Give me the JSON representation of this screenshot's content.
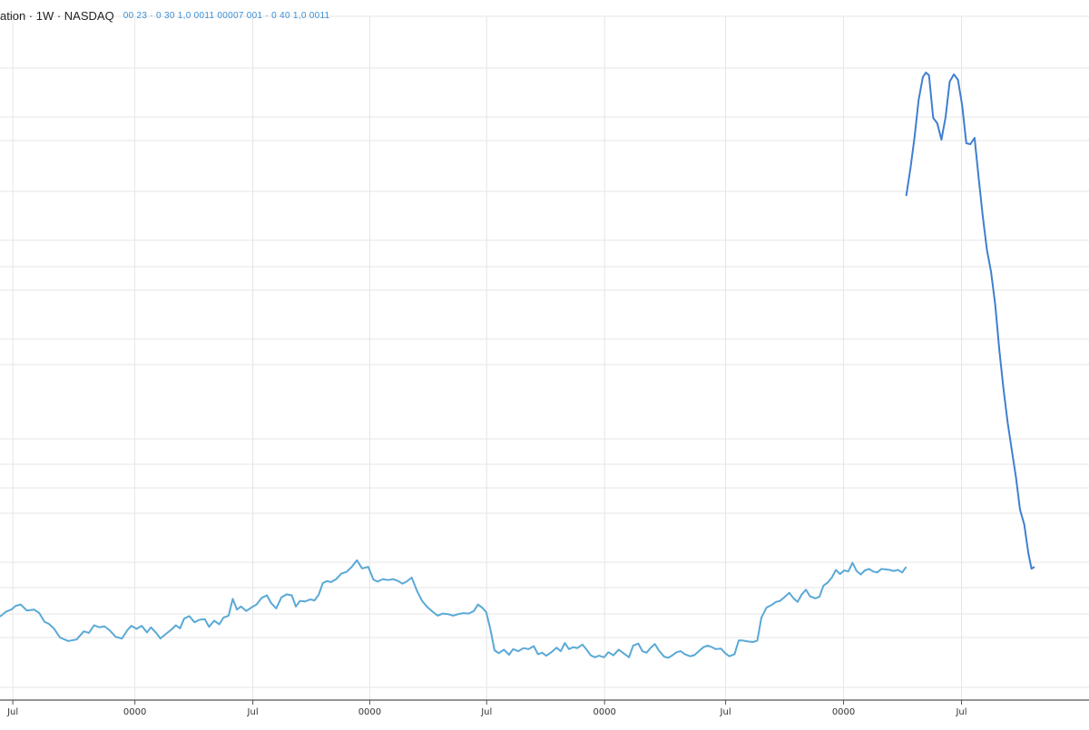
{
  "legend": {
    "title": "ation · 1W · NASDAQ",
    "values": "00 23 · 0 30 1,0 0011 00007 001 · 0 40 1,0 0011"
  },
  "colors": {
    "line": "#5aa9d6",
    "line_peak": "#3f7fd0",
    "grid": "#e6e6e6",
    "axis": "#555555",
    "legend_values": "#3a8fd6"
  },
  "chart_data": {
    "type": "line",
    "title": "",
    "xlabel": "",
    "ylabel": "",
    "grid": true,
    "xlim": [
      0,
      1
    ],
    "ylim": [
      0,
      1
    ],
    "x_ticks": [
      {
        "x": 0.008,
        "label": "Jul"
      },
      {
        "x": 0.126,
        "label": "0000"
      },
      {
        "x": 0.24,
        "label": "Jul"
      },
      {
        "x": 0.353,
        "label": "0000"
      },
      {
        "x": 0.466,
        "label": "Jul"
      },
      {
        "x": 0.58,
        "label": "0000"
      },
      {
        "x": 0.697,
        "label": "Jul"
      },
      {
        "x": 0.811,
        "label": "0000"
      },
      {
        "x": 0.925,
        "label": "Jul"
      }
    ],
    "series": [
      {
        "values": [
          [
            0.0,
            0.25
          ],
          [
            0.006,
            0.24
          ],
          [
            0.011,
            0.236
          ],
          [
            0.015,
            0.229
          ],
          [
            0.02,
            0.226
          ],
          [
            0.026,
            0.238
          ],
          [
            0.033,
            0.236
          ],
          [
            0.038,
            0.243
          ],
          [
            0.043,
            0.26
          ],
          [
            0.047,
            0.264
          ],
          [
            0.052,
            0.273
          ],
          [
            0.058,
            0.291
          ],
          [
            0.066,
            0.298
          ],
          [
            0.074,
            0.295
          ],
          [
            0.081,
            0.279
          ],
          [
            0.086,
            0.282
          ],
          [
            0.091,
            0.267
          ],
          [
            0.096,
            0.271
          ],
          [
            0.101,
            0.269
          ],
          [
            0.106,
            0.277
          ],
          [
            0.112,
            0.29
          ],
          [
            0.118,
            0.293
          ],
          [
            0.123,
            0.277
          ],
          [
            0.127,
            0.268
          ],
          [
            0.132,
            0.274
          ],
          [
            0.137,
            0.268
          ],
          [
            0.142,
            0.281
          ],
          [
            0.146,
            0.271
          ],
          [
            0.151,
            0.282
          ],
          [
            0.155,
            0.293
          ],
          [
            0.161,
            0.283
          ],
          [
            0.166,
            0.275
          ],
          [
            0.17,
            0.267
          ],
          [
            0.174,
            0.273
          ],
          [
            0.178,
            0.254
          ],
          [
            0.183,
            0.249
          ],
          [
            0.188,
            0.261
          ],
          [
            0.193,
            0.256
          ],
          [
            0.198,
            0.255
          ],
          [
            0.202,
            0.27
          ],
          [
            0.207,
            0.258
          ],
          [
            0.212,
            0.265
          ],
          [
            0.216,
            0.252
          ],
          [
            0.221,
            0.248
          ],
          [
            0.225,
            0.215
          ],
          [
            0.229,
            0.236
          ],
          [
            0.233,
            0.23
          ],
          [
            0.238,
            0.239
          ],
          [
            0.243,
            0.232
          ],
          [
            0.248,
            0.226
          ],
          [
            0.253,
            0.213
          ],
          [
            0.258,
            0.208
          ],
          [
            0.262,
            0.223
          ],
          [
            0.267,
            0.234
          ],
          [
            0.272,
            0.212
          ],
          [
            0.277,
            0.206
          ],
          [
            0.282,
            0.208
          ],
          [
            0.286,
            0.23
          ],
          [
            0.29,
            0.219
          ],
          [
            0.295,
            0.22
          ],
          [
            0.3,
            0.216
          ],
          [
            0.304,
            0.218
          ],
          [
            0.308,
            0.207
          ],
          [
            0.312,
            0.184
          ],
          [
            0.316,
            0.18
          ],
          [
            0.32,
            0.182
          ],
          [
            0.325,
            0.176
          ],
          [
            0.33,
            0.165
          ],
          [
            0.335,
            0.162
          ],
          [
            0.34,
            0.152
          ],
          [
            0.345,
            0.139
          ],
          [
            0.35,
            0.155
          ],
          [
            0.356,
            0.152
          ],
          [
            0.361,
            0.177
          ],
          [
            0.365,
            0.181
          ],
          [
            0.37,
            0.176
          ],
          [
            0.375,
            0.178
          ],
          [
            0.38,
            0.176
          ],
          [
            0.385,
            0.18
          ],
          [
            0.389,
            0.185
          ],
          [
            0.393,
            0.181
          ],
          [
            0.398,
            0.173
          ],
          [
            0.403,
            0.199
          ],
          [
            0.408,
            0.219
          ],
          [
            0.413,
            0.231
          ],
          [
            0.418,
            0.24
          ],
          [
            0.423,
            0.248
          ],
          [
            0.428,
            0.244
          ],
          [
            0.433,
            0.245
          ],
          [
            0.438,
            0.248
          ],
          [
            0.443,
            0.245
          ],
          [
            0.448,
            0.243
          ],
          [
            0.453,
            0.244
          ],
          [
            0.458,
            0.239
          ],
          [
            0.462,
            0.226
          ],
          [
            0.466,
            0.232
          ],
          [
            0.47,
            0.241
          ],
          [
            0.474,
            0.275
          ],
          [
            0.478,
            0.316
          ],
          [
            0.482,
            0.322
          ],
          [
            0.487,
            0.315
          ],
          [
            0.492,
            0.325
          ],
          [
            0.496,
            0.314
          ],
          [
            0.501,
            0.318
          ],
          [
            0.506,
            0.312
          ],
          [
            0.511,
            0.314
          ],
          [
            0.516,
            0.308
          ],
          [
            0.52,
            0.324
          ],
          [
            0.524,
            0.321
          ],
          [
            0.528,
            0.327
          ],
          [
            0.533,
            0.32
          ],
          [
            0.538,
            0.311
          ],
          [
            0.542,
            0.318
          ],
          [
            0.546,
            0.302
          ],
          [
            0.55,
            0.314
          ],
          [
            0.554,
            0.31
          ],
          [
            0.558,
            0.312
          ],
          [
            0.563,
            0.305
          ],
          [
            0.567,
            0.315
          ],
          [
            0.571,
            0.326
          ],
          [
            0.575,
            0.33
          ],
          [
            0.579,
            0.327
          ],
          [
            0.584,
            0.33
          ],
          [
            0.588,
            0.32
          ],
          [
            0.593,
            0.326
          ],
          [
            0.598,
            0.315
          ],
          [
            0.604,
            0.324
          ],
          [
            0.608,
            0.33
          ],
          [
            0.612,
            0.307
          ],
          [
            0.617,
            0.303
          ],
          [
            0.621,
            0.318
          ],
          [
            0.625,
            0.321
          ],
          [
            0.629,
            0.311
          ],
          [
            0.633,
            0.304
          ],
          [
            0.637,
            0.317
          ],
          [
            0.642,
            0.329
          ],
          [
            0.646,
            0.331
          ],
          [
            0.65,
            0.326
          ],
          [
            0.654,
            0.32
          ],
          [
            0.658,
            0.318
          ],
          [
            0.662,
            0.324
          ],
          [
            0.667,
            0.328
          ],
          [
            0.671,
            0.326
          ],
          [
            0.675,
            0.319
          ],
          [
            0.68,
            0.31
          ],
          [
            0.684,
            0.307
          ],
          [
            0.688,
            0.31
          ],
          [
            0.692,
            0.314
          ],
          [
            0.697,
            0.313
          ],
          [
            0.701,
            0.322
          ],
          [
            0.705,
            0.328
          ],
          [
            0.71,
            0.324
          ],
          [
            0.714,
            0.297
          ],
          [
            0.718,
            0.297
          ],
          [
            0.723,
            0.299
          ],
          [
            0.728,
            0.3
          ],
          [
            0.732,
            0.297
          ],
          [
            0.736,
            0.252
          ],
          [
            0.741,
            0.232
          ],
          [
            0.746,
            0.227
          ],
          [
            0.75,
            0.221
          ],
          [
            0.754,
            0.219
          ],
          [
            0.758,
            0.212
          ],
          [
            0.763,
            0.203
          ],
          [
            0.767,
            0.214
          ],
          [
            0.771,
            0.221
          ],
          [
            0.775,
            0.206
          ],
          [
            0.779,
            0.197
          ],
          [
            0.783,
            0.21
          ],
          [
            0.788,
            0.214
          ],
          [
            0.792,
            0.211
          ],
          [
            0.796,
            0.189
          ],
          [
            0.8,
            0.183
          ],
          [
            0.804,
            0.173
          ],
          [
            0.808,
            0.158
          ],
          [
            0.812,
            0.166
          ],
          [
            0.816,
            0.159
          ],
          [
            0.82,
            0.161
          ],
          [
            0.824,
            0.144
          ],
          [
            0.828,
            0.16
          ],
          [
            0.832,
            0.167
          ],
          [
            0.836,
            0.159
          ],
          [
            0.84,
            0.156
          ],
          [
            0.844,
            0.161
          ],
          [
            0.848,
            0.163
          ],
          [
            0.852,
            0.156
          ],
          [
            0.856,
            0.157
          ],
          [
            0.86,
            0.158
          ],
          [
            0.864,
            0.16
          ],
          [
            0.868,
            0.158
          ],
          [
            0.872,
            0.163
          ],
          [
            0.876,
            0.152
          ]
        ]
      },
      {
        "values": [
          [
            0.876,
            0.152
          ],
          [
            0.88,
            0.122
          ],
          [
            0.884,
            0.087
          ],
          [
            0.888,
            0.046
          ],
          [
            0.892,
            0.021
          ],
          [
            0.895,
            0.016
          ],
          [
            0.898,
            0.019
          ],
          [
            0.902,
            0.066
          ],
          [
            0.906,
            0.072
          ],
          [
            0.91,
            0.09
          ],
          [
            0.914,
            0.065
          ],
          [
            0.918,
            0.026
          ],
          [
            0.922,
            0.018
          ],
          [
            0.926,
            0.024
          ],
          [
            0.93,
            0.052
          ],
          [
            0.934,
            0.094
          ],
          [
            0.938,
            0.095
          ],
          [
            0.942,
            0.088
          ],
          [
            0.946,
            0.132
          ],
          [
            0.95,
            0.175
          ],
          [
            0.954,
            0.212
          ],
          [
            0.958,
            0.236
          ],
          [
            0.962,
            0.272
          ],
          [
            0.966,
            0.322
          ],
          [
            0.97,
            0.365
          ],
          [
            0.974,
            0.402
          ],
          [
            0.978,
            0.432
          ],
          [
            0.982,
            0.462
          ],
          [
            0.986,
            0.498
          ],
          [
            0.99,
            0.514
          ],
          [
            0.994,
            0.546
          ],
          [
            0.997,
            0.563
          ],
          [
            1.0,
            0.561
          ]
        ]
      }
    ]
  }
}
